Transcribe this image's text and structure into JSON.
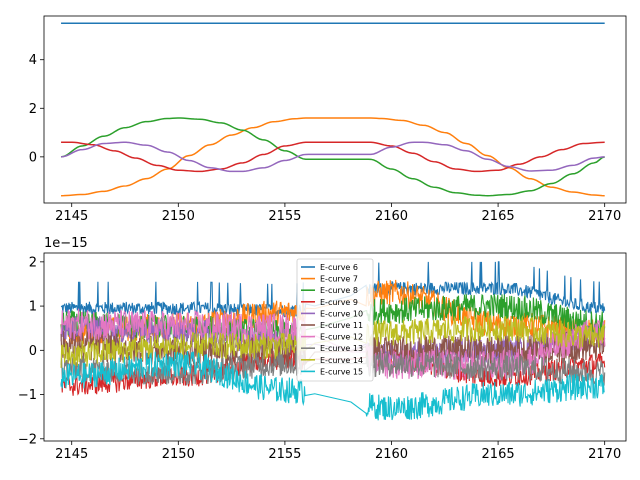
{
  "chart_data": [
    {
      "type": "line",
      "title": "",
      "xlabel": "",
      "ylabel": "",
      "xlim": [
        2143.7,
        2171.0
      ],
      "ylim": [
        -1.9,
        5.8
      ],
      "xticks": [
        2145,
        2150,
        2155,
        2160,
        2165,
        2170
      ],
      "xtick_labels": [
        "2145",
        "2150",
        "2155",
        "2160",
        "2165",
        "2170"
      ],
      "yticks": [
        0,
        2,
        4
      ],
      "ytick_labels": [
        "0",
        "2",
        "4"
      ],
      "grid": false,
      "legend": "none",
      "series": [
        {
          "color": "#1f77b4",
          "x": [
            2144.5,
            2170.0
          ],
          "y": [
            5.5,
            5.5
          ]
        },
        {
          "color": "#ff7f0e",
          "x": [
            2144.5,
            2145.5,
            2146.5,
            2147.5,
            2148.5,
            2149.5,
            2150.5,
            2151.5,
            2152.5,
            2153.5,
            2154.5,
            2155.5,
            2156.0,
            2159.0,
            2159.5,
            2160.5,
            2161.5,
            2162.5,
            2163.5,
            2164.5,
            2165.5,
            2166.5,
            2167.5,
            2168.5,
            2169.5,
            2170.0
          ],
          "y": [
            -1.6,
            -1.55,
            -1.42,
            -1.2,
            -0.9,
            -0.5,
            0.05,
            0.5,
            0.9,
            1.2,
            1.45,
            1.57,
            1.6,
            1.6,
            1.58,
            1.5,
            1.3,
            1.0,
            0.55,
            0.05,
            -0.45,
            -0.9,
            -1.25,
            -1.45,
            -1.57,
            -1.6
          ]
        },
        {
          "color": "#2ca02c",
          "x": [
            2144.5,
            2145.5,
            2146.5,
            2147.5,
            2148.5,
            2149.5,
            2150.0,
            2151.0,
            2152.0,
            2153.0,
            2154.0,
            2155.0,
            2156.0,
            2159.0,
            2160.0,
            2161.0,
            2162.0,
            2163.0,
            2164.0,
            2164.5,
            2165.5,
            2166.5,
            2167.5,
            2168.5,
            2169.5,
            2170.0
          ],
          "y": [
            0.0,
            0.45,
            0.85,
            1.2,
            1.45,
            1.58,
            1.6,
            1.55,
            1.4,
            1.1,
            0.7,
            0.25,
            -0.1,
            -0.1,
            -0.5,
            -0.9,
            -1.25,
            -1.48,
            -1.58,
            -1.6,
            -1.55,
            -1.4,
            -1.1,
            -0.7,
            -0.25,
            0.0
          ]
        },
        {
          "color": "#d62728",
          "x": [
            2144.5,
            2145.0,
            2146.0,
            2147.0,
            2148.0,
            2149.0,
            2150.0,
            2151.0,
            2152.0,
            2153.0,
            2154.0,
            2155.0,
            2156.0,
            2159.0,
            2160.0,
            2161.0,
            2162.0,
            2163.0,
            2164.0,
            2165.0,
            2166.0,
            2167.0,
            2168.0,
            2169.0,
            2170.0
          ],
          "y": [
            0.6,
            0.6,
            0.5,
            0.25,
            -0.05,
            -0.35,
            -0.55,
            -0.6,
            -0.5,
            -0.25,
            0.1,
            0.45,
            0.6,
            0.6,
            0.45,
            0.15,
            -0.2,
            -0.5,
            -0.6,
            -0.55,
            -0.3,
            0.0,
            0.3,
            0.55,
            0.6
          ]
        },
        {
          "color": "#9467bd",
          "x": [
            2144.5,
            2145.5,
            2146.5,
            2147.5,
            2148.5,
            2149.5,
            2150.5,
            2151.5,
            2152.5,
            2153.0,
            2154.0,
            2155.0,
            2156.0,
            2159.0,
            2160.0,
            2161.0,
            2161.5,
            2162.5,
            2163.5,
            2164.5,
            2165.5,
            2166.5,
            2167.5,
            2168.5,
            2169.5,
            2170.0
          ],
          "y": [
            0.0,
            0.3,
            0.55,
            0.6,
            0.48,
            0.2,
            -0.15,
            -0.45,
            -0.6,
            -0.6,
            -0.45,
            -0.15,
            0.1,
            0.1,
            0.4,
            0.6,
            0.6,
            0.5,
            0.25,
            -0.1,
            -0.4,
            -0.58,
            -0.55,
            -0.35,
            -0.05,
            0.0
          ]
        }
      ]
    },
    {
      "type": "line",
      "title": "",
      "xlabel": "",
      "ylabel": "",
      "offset_label": "1e−15",
      "xlim": [
        2143.7,
        2171.0
      ],
      "ylim": [
        -2.05,
        2.2
      ],
      "xticks": [
        2145,
        2150,
        2155,
        2160,
        2165,
        2170
      ],
      "xtick_labels": [
        "2145",
        "2150",
        "2155",
        "2160",
        "2165",
        "2170"
      ],
      "yticks": [
        -2,
        -1,
        0,
        1,
        2
      ],
      "ytick_labels": [
        "−2",
        "−1",
        "0",
        "1",
        "2"
      ],
      "grid": false,
      "legend_position": "upper center",
      "gap": [
        2156.0,
        2158.8
      ],
      "series": [
        {
          "name": "E-curve 6",
          "color": "#1f77b4",
          "x": [
            2144.5,
            2150,
            2155,
            2160,
            2165,
            2170
          ],
          "center": [
            0.95,
            0.95,
            0.9,
            1.4,
            1.4,
            0.95
          ],
          "amp": 0.15
        },
        {
          "name": "E-curve 7",
          "color": "#ff7f0e",
          "x": [
            2144.5,
            2150,
            2155,
            2160,
            2165,
            2170
          ],
          "center": [
            0.4,
            0.55,
            0.85,
            1.3,
            0.6,
            0.4
          ],
          "amp": 0.3
        },
        {
          "name": "E-curve 8",
          "color": "#2ca02c",
          "x": [
            2144.5,
            2150,
            2155,
            2160,
            2165,
            2170
          ],
          "center": [
            0.6,
            0.5,
            0.4,
            0.9,
            1.0,
            0.6
          ],
          "amp": 0.3
        },
        {
          "name": "E-curve 9",
          "color": "#d62728",
          "x": [
            2144.5,
            2150,
            2155,
            2160,
            2165,
            2170
          ],
          "center": [
            -0.8,
            -0.6,
            -0.2,
            -0.2,
            -0.6,
            -0.3
          ],
          "amp": 0.25
        },
        {
          "name": "E-curve 10",
          "color": "#9467bd",
          "x": [
            2144.5,
            2150,
            2155,
            2160,
            2165,
            2170
          ],
          "center": [
            0.5,
            0.4,
            0.2,
            -0.1,
            0.0,
            0.3
          ],
          "amp": 0.3
        },
        {
          "name": "E-curve 11",
          "color": "#8c564b",
          "x": [
            2144.5,
            2150,
            2155,
            2160,
            2165,
            2170
          ],
          "center": [
            0.1,
            0.0,
            -0.05,
            0.0,
            0.0,
            0.1
          ],
          "amp": 0.35
        },
        {
          "name": "E-curve 12",
          "color": "#e377c2",
          "x": [
            2144.5,
            2150,
            2155,
            2160,
            2165,
            2170
          ],
          "center": [
            0.6,
            0.55,
            0.5,
            -0.3,
            -0.35,
            0.4
          ],
          "amp": 0.35
        },
        {
          "name": "E-curve 13",
          "color": "#7f7f7f",
          "x": [
            2144.5,
            2150,
            2155,
            2160,
            2165,
            2170
          ],
          "center": [
            -0.4,
            -0.5,
            -0.3,
            -0.3,
            -0.4,
            -0.5
          ],
          "amp": 0.3
        },
        {
          "name": "E-curve 14",
          "color": "#bcbd22",
          "x": [
            2144.5,
            2150,
            2155,
            2160,
            2165,
            2170
          ],
          "center": [
            -0.1,
            0.1,
            0.1,
            0.4,
            0.5,
            0.3
          ],
          "amp": 0.3
        },
        {
          "name": "E-curve 15",
          "color": "#17becf",
          "x": [
            2144.5,
            2150,
            2155,
            2160,
            2165,
            2170
          ],
          "center": [
            -0.6,
            -0.3,
            -0.9,
            -1.3,
            -1.0,
            -0.8
          ],
          "amp": 0.3
        }
      ]
    }
  ]
}
